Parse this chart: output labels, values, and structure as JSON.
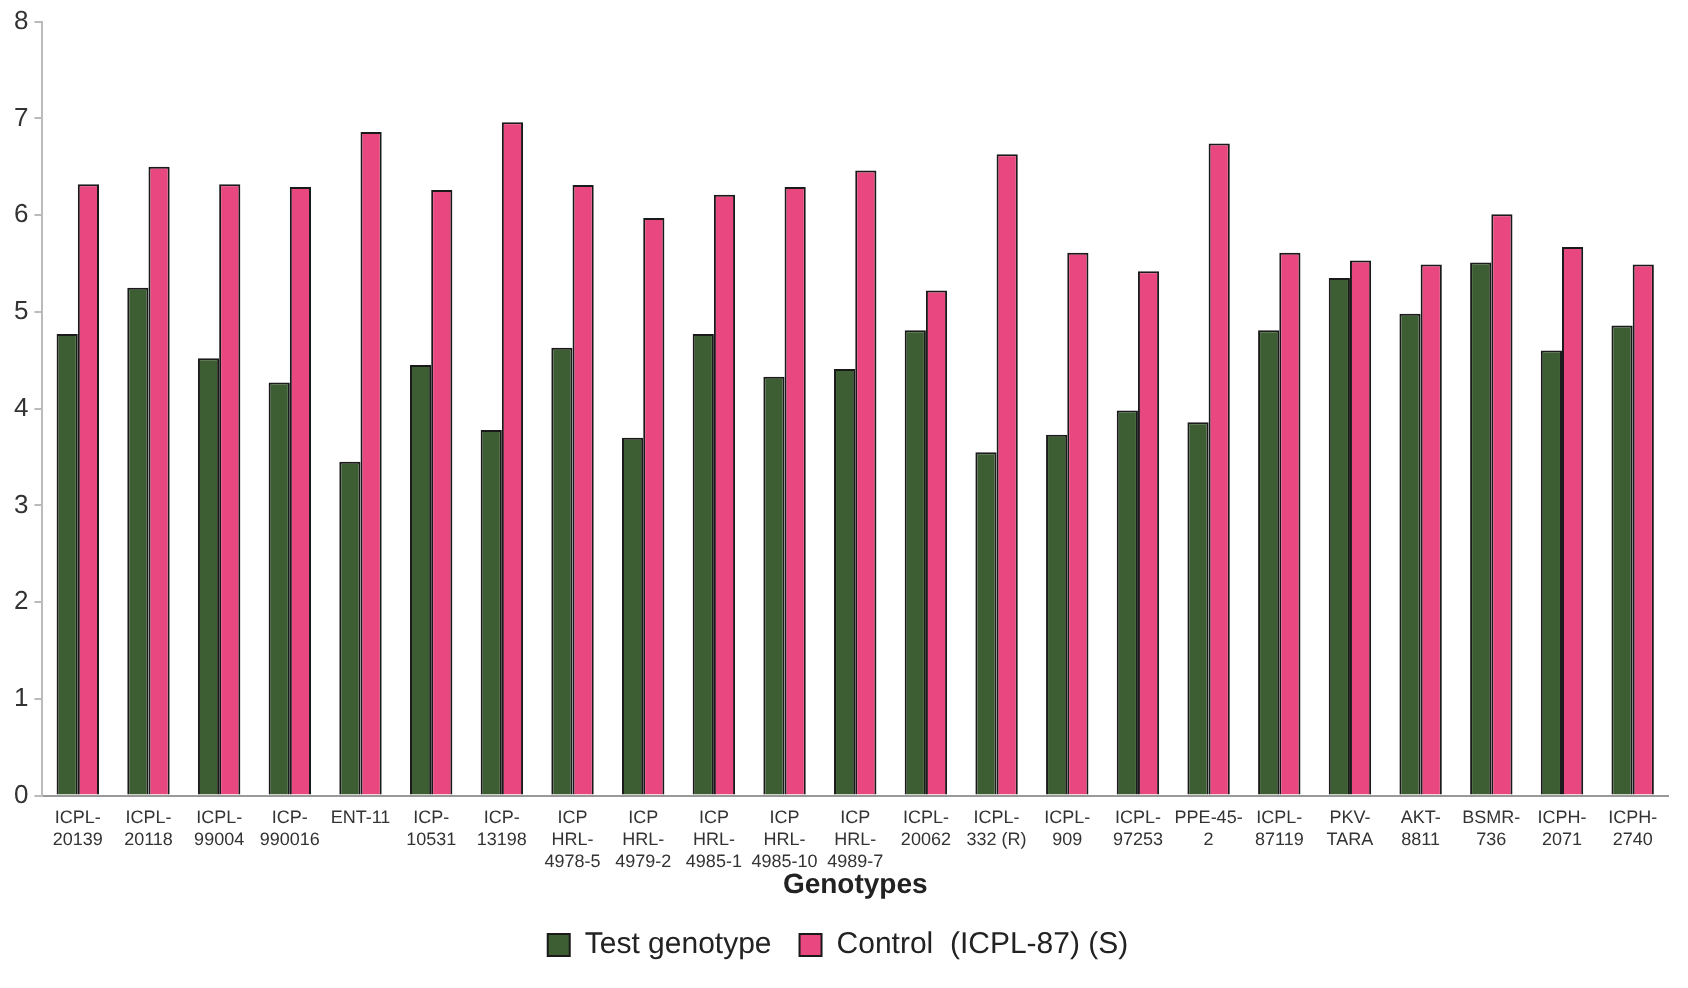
{
  "chart_data": {
    "type": "bar",
    "xlabel": "Genotypes",
    "categories": [
      "ICPL-\n20139",
      "ICPL-\n20118",
      "ICPL-\n99004",
      "ICP-\n990016",
      "ENT-11",
      "ICP-\n10531",
      "ICP-\n13198",
      "ICP\nHRL-\n4978-5",
      "ICP\nHRL-\n4979-2",
      "ICP\nHRL-\n4985-1",
      "ICP\nHRL-\n4985-10",
      "ICP\nHRL-\n4989-7",
      "ICPL-\n20062",
      "ICPL-\n332 (R)",
      "ICPL-\n909",
      "ICPL-\n97253",
      "PPE-45-\n2",
      "ICPL-\n87119",
      "PKV-\nTARA",
      "AKT-\n8811",
      "BSMR-\n736",
      "ICPH-\n2071",
      "ICPH-\n2740"
    ],
    "series": [
      {
        "name": "Test genotype",
        "color": "#3d5e33",
        "values": [
          4.77,
          5.25,
          4.52,
          4.27,
          3.45,
          4.45,
          3.78,
          4.63,
          3.7,
          4.77,
          4.33,
          4.41,
          4.81,
          3.55,
          3.73,
          3.98,
          3.86,
          4.81,
          5.35,
          4.98,
          5.51,
          4.6,
          4.86
        ]
      },
      {
        "name": "Control  (ICPL-87) (S)",
        "color": "#e8487f",
        "values": [
          6.32,
          6.5,
          6.32,
          6.29,
          6.86,
          6.26,
          6.96,
          6.31,
          5.97,
          6.21,
          6.29,
          6.46,
          5.22,
          6.63,
          5.61,
          5.42,
          6.74,
          5.61,
          5.53,
          5.49,
          6.01,
          5.67,
          5.49
        ]
      }
    ],
    "ylim": [
      0,
      8
    ],
    "yticks": [
      0,
      1,
      2,
      3,
      4,
      5,
      6,
      7,
      8
    ],
    "grid": false,
    "legend": "bottom"
  }
}
